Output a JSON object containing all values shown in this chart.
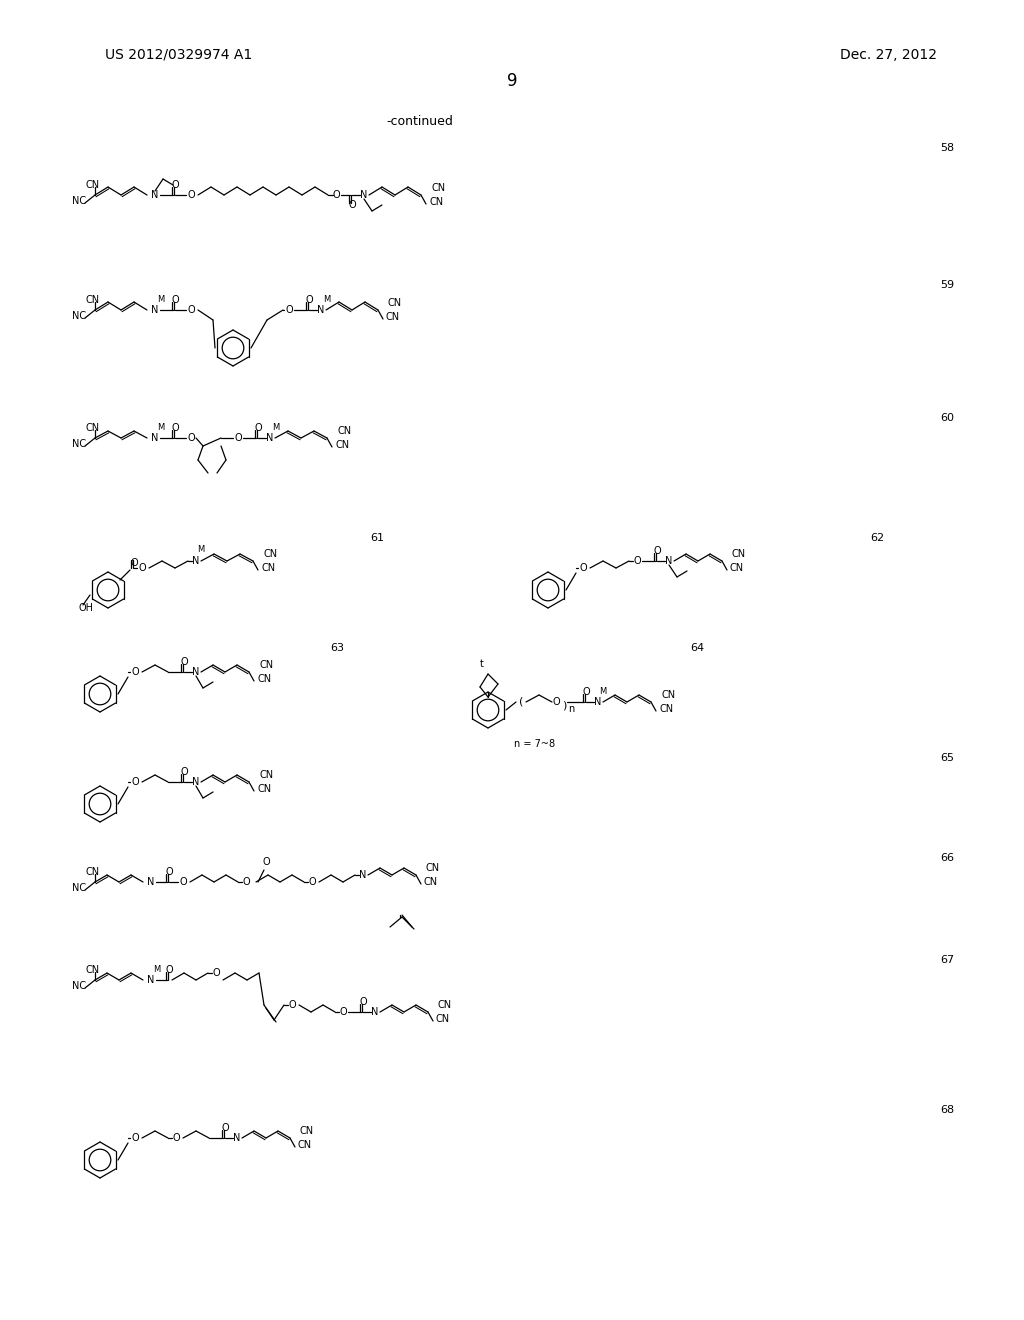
{
  "title_left": "US 2012/0329974 A1",
  "title_right": "Dec. 27, 2012",
  "page_number": "9",
  "continued_text": "-continued",
  "background_color": "#ffffff",
  "text_color": "#000000",
  "compound_numbers": [
    "58",
    "59",
    "60",
    "61",
    "62",
    "63",
    "64",
    "65",
    "66",
    "67",
    "68"
  ],
  "font_size_header": 10,
  "font_size_body": 8,
  "font_size_label": 9,
  "fig_width": 10.24,
  "fig_height": 13.2,
  "dpi": 100
}
